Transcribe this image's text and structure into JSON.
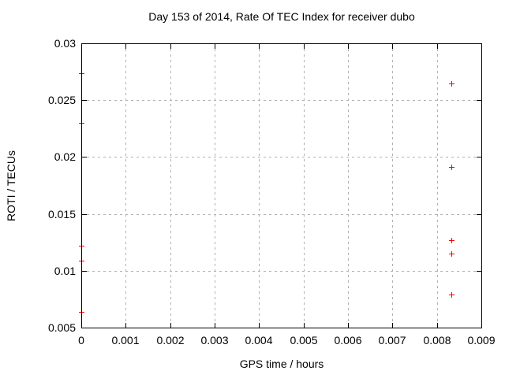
{
  "window": {
    "background": "#ffffff"
  },
  "chart_data": {
    "type": "scatter",
    "title": "Day 153 of 2014, Rate Of TEC Index for receiver dubo",
    "xlabel": "GPS time / hours",
    "ylabel": "ROTI / TECUs",
    "xlim": [
      0,
      0.009
    ],
    "ylim": [
      0.005,
      0.03
    ],
    "xticks": {
      "values": [
        0,
        0.001,
        0.002,
        0.003,
        0.004,
        0.005,
        0.006,
        0.007,
        0.008,
        0.009
      ],
      "labels": [
        "0",
        "0.001",
        "0.002",
        "0.003",
        "0.004",
        "0.005",
        "0.006",
        "0.007",
        "0.008",
        "0.009"
      ]
    },
    "yticks": {
      "values": [
        0.005,
        0.01,
        0.015,
        0.02,
        0.025,
        0.03
      ],
      "labels": [
        "0.005",
        "0.01",
        "0.015",
        "0.02",
        "0.025",
        "0.03"
      ]
    },
    "grid": "on",
    "grid_style": "dashed",
    "grid_color": "#b0b0b0",
    "axis_color": "#000000",
    "text_color": "#000000",
    "legend": "none",
    "series": [
      {
        "name": "ROTI",
        "marker": "plus",
        "color": "#ff0000",
        "points": [
          {
            "x": 0.0,
            "y": 0.0274
          },
          {
            "x": 0.0,
            "y": 0.023
          },
          {
            "x": 0.0,
            "y": 0.0122
          },
          {
            "x": 0.0,
            "y": 0.0109
          },
          {
            "x": 0.0,
            "y": 0.0064
          },
          {
            "x": 0.00833,
            "y": 0.0265
          },
          {
            "x": 0.00833,
            "y": 0.0191
          },
          {
            "x": 0.00833,
            "y": 0.0127
          },
          {
            "x": 0.00833,
            "y": 0.0115
          },
          {
            "x": 0.00833,
            "y": 0.0079
          }
        ]
      }
    ]
  }
}
